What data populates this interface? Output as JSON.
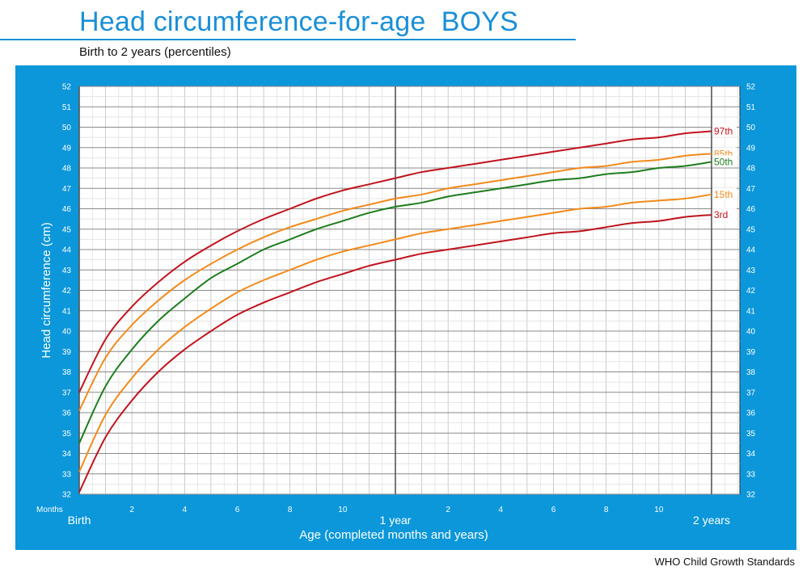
{
  "header": {
    "title": "Head circumference-for-age  BOYS",
    "subtitle": "Birth to 2 years (percentiles)",
    "footer": "WHO Child Growth Standards"
  },
  "colors": {
    "title": "#1a8fd6",
    "panel": "#0b97da",
    "p97": "#c0141e",
    "p85": "#f28a1a",
    "p50": "#1e7d1e",
    "p15": "#f28a1a",
    "p3": "#c0141e"
  },
  "chart_data": {
    "type": "line",
    "title": "Head circumference-for-age  BOYS",
    "subtitle": "Birth to 2 years (percentiles)",
    "xlabel": "Age (completed months and years)",
    "ylabel": "Head circumference (cm)",
    "x_axis_prefix": "Months",
    "x_unit": "months",
    "xlim": [
      0,
      24
    ],
    "ylim": [
      32,
      52
    ],
    "y_ticks": [
      32,
      33,
      34,
      35,
      36,
      37,
      38,
      39,
      40,
      41,
      42,
      43,
      44,
      45,
      46,
      47,
      48,
      49,
      50,
      51,
      52
    ],
    "x_minor_tick_labels": [
      {
        "x": 2,
        "label": "2"
      },
      {
        "x": 4,
        "label": "4"
      },
      {
        "x": 6,
        "label": "6"
      },
      {
        "x": 8,
        "label": "8"
      },
      {
        "x": 10,
        "label": "10"
      },
      {
        "x": 14,
        "label": "2"
      },
      {
        "x": 16,
        "label": "4"
      },
      {
        "x": 18,
        "label": "6"
      },
      {
        "x": 20,
        "label": "8"
      },
      {
        "x": 22,
        "label": "10"
      }
    ],
    "x_major_tick_labels": [
      {
        "x": 0,
        "label": "Birth"
      },
      {
        "x": 12,
        "label": "1 year"
      },
      {
        "x": 24,
        "label": "2 years"
      }
    ],
    "grid": true,
    "series": [
      {
        "name": "97th",
        "color": "#c0141e",
        "x": [
          0,
          1,
          2,
          3,
          4,
          5,
          6,
          7,
          8,
          9,
          10,
          11,
          12,
          13,
          14,
          15,
          16,
          17,
          18,
          19,
          20,
          21,
          22,
          23,
          24
        ],
        "values": [
          37.0,
          39.6,
          41.2,
          42.4,
          43.4,
          44.2,
          44.9,
          45.5,
          46.0,
          46.5,
          46.9,
          47.2,
          47.5,
          47.8,
          48.0,
          48.2,
          48.4,
          48.6,
          48.8,
          49.0,
          49.2,
          49.4,
          49.5,
          49.7,
          49.8
        ]
      },
      {
        "name": "85th",
        "color": "#f28a1a",
        "x": [
          0,
          1,
          2,
          3,
          4,
          5,
          6,
          7,
          8,
          9,
          10,
          11,
          12,
          13,
          14,
          15,
          16,
          17,
          18,
          19,
          20,
          21,
          22,
          23,
          24
        ],
        "values": [
          36.1,
          38.7,
          40.3,
          41.5,
          42.5,
          43.3,
          44.0,
          44.6,
          45.1,
          45.5,
          45.9,
          46.2,
          46.5,
          46.7,
          47.0,
          47.2,
          47.4,
          47.6,
          47.8,
          48.0,
          48.1,
          48.3,
          48.4,
          48.6,
          48.7
        ]
      },
      {
        "name": "50th",
        "color": "#1e7d1e",
        "x": [
          0,
          1,
          2,
          3,
          4,
          5,
          6,
          7,
          8,
          9,
          10,
          11,
          12,
          13,
          14,
          15,
          16,
          17,
          18,
          19,
          20,
          21,
          22,
          23,
          24
        ],
        "values": [
          34.5,
          37.3,
          39.1,
          40.5,
          41.6,
          42.6,
          43.3,
          44.0,
          44.5,
          45.0,
          45.4,
          45.8,
          46.1,
          46.3,
          46.6,
          46.8,
          47.0,
          47.2,
          47.4,
          47.5,
          47.7,
          47.8,
          48.0,
          48.1,
          48.3
        ]
      },
      {
        "name": "15th",
        "color": "#f28a1a",
        "x": [
          0,
          1,
          2,
          3,
          4,
          5,
          6,
          7,
          8,
          9,
          10,
          11,
          12,
          13,
          14,
          15,
          16,
          17,
          18,
          19,
          20,
          21,
          22,
          23,
          24
        ],
        "values": [
          33.1,
          35.9,
          37.7,
          39.1,
          40.2,
          41.1,
          41.9,
          42.5,
          43.0,
          43.5,
          43.9,
          44.2,
          44.5,
          44.8,
          45.0,
          45.2,
          45.4,
          45.6,
          45.8,
          46.0,
          46.1,
          46.3,
          46.4,
          46.5,
          46.7
        ]
      },
      {
        "name": "3rd",
        "color": "#c0141e",
        "x": [
          0,
          1,
          2,
          3,
          4,
          5,
          6,
          7,
          8,
          9,
          10,
          11,
          12,
          13,
          14,
          15,
          16,
          17,
          18,
          19,
          20,
          21,
          22,
          23,
          24
        ],
        "values": [
          32.1,
          34.8,
          36.6,
          38.0,
          39.1,
          40.0,
          40.8,
          41.4,
          41.9,
          42.4,
          42.8,
          43.2,
          43.5,
          43.8,
          44.0,
          44.2,
          44.4,
          44.6,
          44.8,
          44.9,
          45.1,
          45.3,
          45.4,
          45.6,
          45.7
        ]
      }
    ]
  }
}
